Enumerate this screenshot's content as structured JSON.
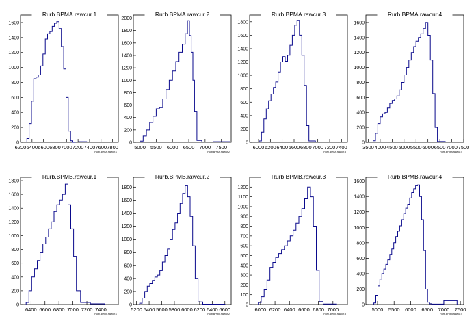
{
  "colors": {
    "line": "#0a0a8c",
    "frame": "#000000",
    "background": "#ffffff"
  },
  "chart_data": [
    {
      "type": "line",
      "style": "step-histogram",
      "title": "Rurb.BPMA.rawcur.1",
      "xlabel": "Rurb.BPMA.rawcur.1",
      "ylabel": "",
      "xlim": [
        6200,
        7900
      ],
      "ylim": [
        0,
        1700
      ],
      "xticks": [
        6200,
        6400,
        6600,
        6800,
        7000,
        7200,
        7400,
        7600,
        7800
      ],
      "yticks": [
        0,
        200,
        400,
        600,
        800,
        1000,
        1200,
        1400,
        1600
      ],
      "x": [
        6330,
        6370,
        6410,
        6450,
        6490,
        6530,
        6570,
        6610,
        6650,
        6690,
        6730,
        6770,
        6810,
        6850,
        6890,
        6930,
        6970,
        7010,
        7050,
        7090,
        7130,
        7170,
        7250,
        7450
      ],
      "values": [
        50,
        250,
        550,
        850,
        870,
        900,
        1020,
        1180,
        1380,
        1450,
        1480,
        1550,
        1590,
        1610,
        1520,
        1280,
        980,
        600,
        150,
        20,
        0,
        5,
        8,
        5
      ]
    },
    {
      "type": "line",
      "style": "step-histogram",
      "title": "Rurb.BPMA.rawcur.2",
      "xlabel": "Rurb.BPMA.rawcur.2",
      "ylabel": "",
      "xlim": [
        4800,
        7800
      ],
      "ylim": [
        0,
        2050
      ],
      "xticks": [
        5000,
        5500,
        6000,
        6500,
        7000,
        7500
      ],
      "yticks": [
        0,
        200,
        400,
        600,
        800,
        1000,
        1200,
        1400,
        1600,
        1800,
        2000
      ],
      "x": [
        5050,
        5150,
        5250,
        5350,
        5450,
        5550,
        5650,
        5750,
        5850,
        5950,
        6050,
        6150,
        6250,
        6350,
        6430,
        6490,
        6550,
        6600,
        6650,
        6700,
        6800,
        7000,
        7500
      ],
      "values": [
        20,
        100,
        200,
        320,
        420,
        540,
        560,
        700,
        850,
        1000,
        1150,
        1300,
        1450,
        1580,
        1750,
        1960,
        1720,
        1450,
        1000,
        500,
        30,
        5,
        10
      ]
    },
    {
      "type": "line",
      "style": "step-histogram",
      "title": "Rurb.BPMA.rawcur.3",
      "xlabel": "Rurb.BPMA.rawcur.3",
      "ylabel": "",
      "xlim": [
        5850,
        7500
      ],
      "ylim": [
        0,
        1900
      ],
      "xticks": [
        6000,
        6200,
        6400,
        6600,
        6800,
        7000,
        7200,
        7400
      ],
      "yticks": [
        0,
        200,
        400,
        600,
        800,
        1000,
        1200,
        1400,
        1600,
        1800
      ],
      "x": [
        6030,
        6070,
        6110,
        6150,
        6190,
        6230,
        6270,
        6310,
        6350,
        6390,
        6430,
        6470,
        6510,
        6550,
        6590,
        6630,
        6670,
        6710,
        6750,
        6790,
        6830,
        6870,
        7050,
        7250
      ],
      "values": [
        20,
        150,
        350,
        500,
        620,
        720,
        820,
        900,
        1050,
        1200,
        1280,
        1210,
        1300,
        1450,
        1600,
        1750,
        1820,
        1600,
        1300,
        850,
        250,
        20,
        5,
        5
      ]
    },
    {
      "type": "line",
      "style": "step-histogram",
      "title": "Rurb.BPMA.rawcur.4",
      "xlabel": "Rurb.BPMA.rawcur.4",
      "ylabel": "",
      "xlim": [
        3400,
        7500
      ],
      "ylim": [
        0,
        1700
      ],
      "xticks": [
        3500,
        4000,
        4500,
        5000,
        5500,
        6000,
        6500,
        7000,
        7500
      ],
      "yticks": [
        0,
        200,
        400,
        600,
        800,
        1000,
        1200,
        1400,
        1600
      ],
      "x": [
        3750,
        3850,
        3950,
        4050,
        4150,
        4250,
        4350,
        4450,
        4550,
        4650,
        4750,
        4850,
        4950,
        5050,
        5150,
        5250,
        5350,
        5450,
        5550,
        5650,
        5750,
        5850,
        5950,
        6050,
        6150,
        6250,
        6350,
        6450,
        7000
      ],
      "values": [
        20,
        120,
        250,
        340,
        380,
        400,
        460,
        520,
        560,
        580,
        620,
        700,
        800,
        900,
        1000,
        1100,
        1200,
        1280,
        1350,
        1400,
        1450,
        1520,
        1600,
        1430,
        1100,
        650,
        200,
        10,
        5
      ]
    },
    {
      "type": "line",
      "style": "step-histogram",
      "title": "Rurb.BPMB.rawcur.1",
      "xlabel": "Rurb.BPMB.rawcur.1",
      "ylabel": "",
      "xlim": [
        6250,
        7650
      ],
      "ylim": [
        0,
        1850
      ],
      "xticks": [
        6400,
        6600,
        6800,
        7000,
        7200,
        7400
      ],
      "yticks": [
        0,
        200,
        400,
        600,
        800,
        1000,
        1200,
        1400,
        1600,
        1800
      ],
      "x": [
        6350,
        6390,
        6430,
        6470,
        6510,
        6550,
        6590,
        6630,
        6670,
        6710,
        6750,
        6790,
        6830,
        6870,
        6910,
        6950,
        6990,
        7030,
        7070,
        7150,
        7350
      ],
      "values": [
        30,
        200,
        400,
        520,
        640,
        760,
        880,
        980,
        1100,
        1200,
        1350,
        1450,
        1520,
        1600,
        1750,
        1450,
        1100,
        700,
        200,
        30,
        10
      ]
    },
    {
      "type": "line",
      "style": "step-histogram",
      "title": "Rurb.BPMB.rawcur.2",
      "xlabel": "Rurb.BPMB.rawcur.2",
      "ylabel": "",
      "xlim": [
        5150,
        6700
      ],
      "ylim": [
        0,
        1950
      ],
      "xticks": [
        5200,
        5400,
        5600,
        5800,
        6000,
        6200,
        6400,
        6600
      ],
      "yticks": [
        0,
        200,
        400,
        600,
        800,
        1000,
        1200,
        1400,
        1600,
        1800
      ],
      "x": [
        5270,
        5310,
        5350,
        5390,
        5430,
        5470,
        5510,
        5550,
        5590,
        5630,
        5670,
        5710,
        5750,
        5790,
        5830,
        5870,
        5910,
        5950,
        5990,
        6030,
        6070,
        6110,
        6150,
        6200,
        6300,
        6500
      ],
      "values": [
        20,
        100,
        200,
        280,
        320,
        370,
        420,
        450,
        520,
        650,
        750,
        850,
        1000,
        1150,
        1250,
        1400,
        1550,
        1700,
        1820,
        1650,
        1350,
        900,
        400,
        40,
        5,
        5
      ]
    },
    {
      "type": "line",
      "style": "step-histogram",
      "title": "Rurb.BPMB.rawcur.3",
      "xlabel": "Rurb.BPMB.rawcur.3",
      "ylabel": "",
      "xlim": [
        5850,
        7200
      ],
      "ylim": [
        0,
        1300
      ],
      "xticks": [
        6000,
        6200,
        6400,
        6600,
        6800,
        7000
      ],
      "yticks": [
        0,
        100,
        200,
        300,
        400,
        500,
        600,
        700,
        800,
        900,
        1000,
        1100,
        1200
      ],
      "x": [
        5990,
        6030,
        6070,
        6110,
        6150,
        6190,
        6230,
        6270,
        6310,
        6350,
        6390,
        6430,
        6470,
        6510,
        6550,
        6590,
        6630,
        6670,
        6710,
        6750,
        6790,
        6830,
        6900,
        7000
      ],
      "values": [
        20,
        80,
        150,
        250,
        380,
        430,
        480,
        520,
        560,
        600,
        650,
        700,
        760,
        830,
        900,
        980,
        1080,
        1200,
        1100,
        800,
        350,
        30,
        5,
        5
      ]
    },
    {
      "type": "line",
      "style": "step-histogram",
      "title": "Rurb.BPMB.rawcur.4",
      "xlabel": "Rurb.BPMB.rawcur.4",
      "ylabel": "",
      "xlim": [
        4650,
        7600
      ],
      "ylim": [
        0,
        1650
      ],
      "xticks": [
        5000,
        5500,
        6000,
        6500,
        7000,
        7500
      ],
      "yticks": [
        0,
        200,
        400,
        600,
        800,
        1000,
        1200,
        1400,
        1600
      ],
      "x": [
        4920,
        4980,
        5040,
        5100,
        5160,
        5220,
        5280,
        5340,
        5400,
        5460,
        5520,
        5580,
        5640,
        5700,
        5760,
        5820,
        5880,
        5940,
        6000,
        6060,
        6120,
        6180,
        6240,
        6300,
        6360,
        6420,
        6480,
        6540,
        6600,
        6660,
        6800,
        7200
      ],
      "values": [
        20,
        120,
        240,
        330,
        400,
        460,
        520,
        580,
        650,
        720,
        800,
        880,
        950,
        1020,
        1100,
        1180,
        1250,
        1300,
        1380,
        1450,
        1500,
        1540,
        1550,
        1400,
        1100,
        700,
        200,
        30,
        10,
        5,
        5,
        50
      ]
    }
  ]
}
